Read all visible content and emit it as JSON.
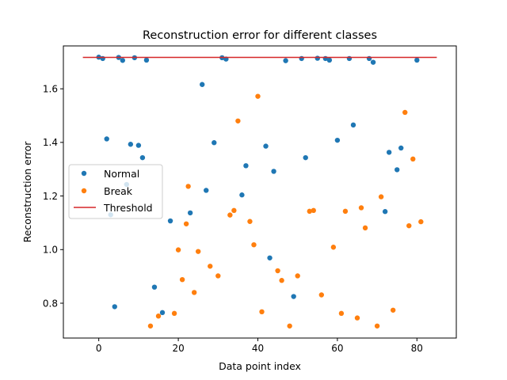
{
  "chart_data": {
    "type": "scatter",
    "title": "Reconstruction error for different classes",
    "xlabel": "Data point index",
    "ylabel": "Reconstruction error",
    "xlim": [
      -8.9,
      89.9
    ],
    "ylim": [
      0.67,
      1.76
    ],
    "xticks": [
      0,
      20,
      40,
      60,
      80
    ],
    "yticks": [
      0.8,
      1.0,
      1.2,
      1.4,
      1.6
    ],
    "ytick_labels": [
      "0.8",
      "1.0",
      "1.2",
      "1.4",
      "1.6"
    ],
    "grid": false,
    "legend": {
      "position": "center-left",
      "entries": [
        "Normal",
        "Break",
        "Threshold"
      ]
    },
    "series": [
      {
        "name": "Normal",
        "kind": "scatter",
        "color": "#1f77b4",
        "points": [
          [
            0,
            1.718
          ],
          [
            1,
            1.713
          ],
          [
            2,
            1.413
          ],
          [
            3,
            1.13
          ],
          [
            4,
            0.787
          ],
          [
            5,
            1.717
          ],
          [
            6,
            1.706
          ],
          [
            7,
            1.243
          ],
          [
            8,
            1.393
          ],
          [
            9,
            1.716
          ],
          [
            10,
            1.389
          ],
          [
            11,
            1.343
          ],
          [
            12,
            1.707
          ],
          [
            14,
            0.86
          ],
          [
            16,
            0.765
          ],
          [
            18,
            1.107
          ],
          [
            23,
            1.137
          ],
          [
            26,
            1.616
          ],
          [
            27,
            1.221
          ],
          [
            29,
            1.399
          ],
          [
            31,
            1.716
          ],
          [
            32,
            1.711
          ],
          [
            36,
            1.204
          ],
          [
            37,
            1.313
          ],
          [
            42,
            1.386
          ],
          [
            43,
            0.969
          ],
          [
            44,
            1.292
          ],
          [
            47,
            1.705
          ],
          [
            49,
            0.825
          ],
          [
            51,
            1.713
          ],
          [
            52,
            1.343
          ],
          [
            55,
            1.714
          ],
          [
            57,
            1.713
          ],
          [
            58,
            1.707
          ],
          [
            60,
            1.408
          ],
          [
            63,
            1.713
          ],
          [
            64,
            1.465
          ],
          [
            68,
            1.713
          ],
          [
            69,
            1.699
          ],
          [
            72,
            1.142
          ],
          [
            73,
            1.363
          ],
          [
            75,
            1.298
          ],
          [
            76,
            1.379
          ],
          [
            80,
            1.707
          ]
        ]
      },
      {
        "name": "Break",
        "kind": "scatter",
        "color": "#ff7f0e",
        "points": [
          [
            13,
            0.715
          ],
          [
            15,
            0.752
          ],
          [
            19,
            0.762
          ],
          [
            20,
            0.999
          ],
          [
            21,
            0.888
          ],
          [
            22,
            1.096
          ],
          [
            22.5,
            1.236
          ],
          [
            24,
            0.84
          ],
          [
            25,
            0.993
          ],
          [
            28,
            0.938
          ],
          [
            30,
            0.902
          ],
          [
            33,
            1.129
          ],
          [
            34,
            1.146
          ],
          [
            35,
            1.48
          ],
          [
            38,
            1.105
          ],
          [
            39,
            1.018
          ],
          [
            40,
            1.572
          ],
          [
            41,
            0.768
          ],
          [
            45,
            0.921
          ],
          [
            46,
            0.885
          ],
          [
            48,
            0.715
          ],
          [
            50,
            0.902
          ],
          [
            53,
            1.143
          ],
          [
            54,
            1.146
          ],
          [
            56,
            0.831
          ],
          [
            59,
            1.009
          ],
          [
            61,
            0.762
          ],
          [
            62,
            1.143
          ],
          [
            65,
            0.745
          ],
          [
            66,
            1.156
          ],
          [
            67,
            1.081
          ],
          [
            70,
            0.715
          ],
          [
            71,
            1.197
          ],
          [
            74,
            0.774
          ],
          [
            77,
            1.512
          ],
          [
            78,
            1.089
          ],
          [
            79,
            1.338
          ],
          [
            81,
            1.104
          ]
        ]
      },
      {
        "name": "Threshold",
        "kind": "hline",
        "color": "#d62728",
        "y": 1.717,
        "x_range": [
          -4,
          85
        ]
      }
    ]
  }
}
